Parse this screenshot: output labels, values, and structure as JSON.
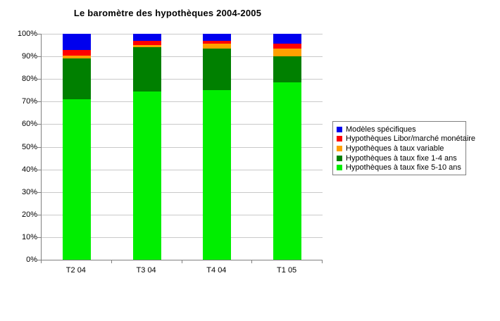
{
  "chart_data": {
    "type": "bar",
    "stacked": true,
    "percent_stacked": true,
    "title": "Le baromètre des hypothèques 2004-2005",
    "categories": [
      "T2 04",
      "T3 04",
      "T4 04",
      "T1 05"
    ],
    "series": [
      {
        "name": "Hypothèques à taux fixe 5-10 ans",
        "color": "#00EE00",
        "values": [
          71,
          74.5,
          75,
          78.5
        ]
      },
      {
        "name": "Hypothèques à taux fixe 1-4 ans",
        "color": "#008000",
        "values": [
          18,
          19.5,
          18.5,
          11.5
        ]
      },
      {
        "name": "Hypothèques à taux variable",
        "color": "#FFA000",
        "values": [
          1.5,
          1,
          2,
          3.5
        ]
      },
      {
        "name": "Hypothèques Libor/marché monétaire",
        "color": "#FF0000",
        "values": [
          2.5,
          2,
          1.5,
          2
        ]
      },
      {
        "name": "Modèles spécifiques",
        "color": "#0000EE",
        "values": [
          7,
          3,
          3,
          4.5
        ]
      }
    ],
    "xlabel": "",
    "ylabel": "",
    "y_axis": {
      "min": 0,
      "max": 100,
      "step": 10,
      "tick_labels": [
        "0%",
        "10%",
        "20%",
        "30%",
        "40%",
        "50%",
        "60%",
        "70%",
        "80%",
        "90%",
        "100%"
      ]
    },
    "grid": true,
    "legend": {
      "position": "right",
      "entries": [
        "Modèles spécifiques",
        "Hypothèques Libor/marché monétaire",
        "Hypothèques à taux variable",
        "Hypothèques à taux fixe 1-4 ans",
        "Hypothèques à taux fixe 5-10 ans"
      ]
    }
  },
  "colors": {
    "background": "#FFFFFF",
    "gridline": "#C9C9C9",
    "axis": "#808080",
    "legend_border": "#808080",
    "title_text": "#000000"
  }
}
